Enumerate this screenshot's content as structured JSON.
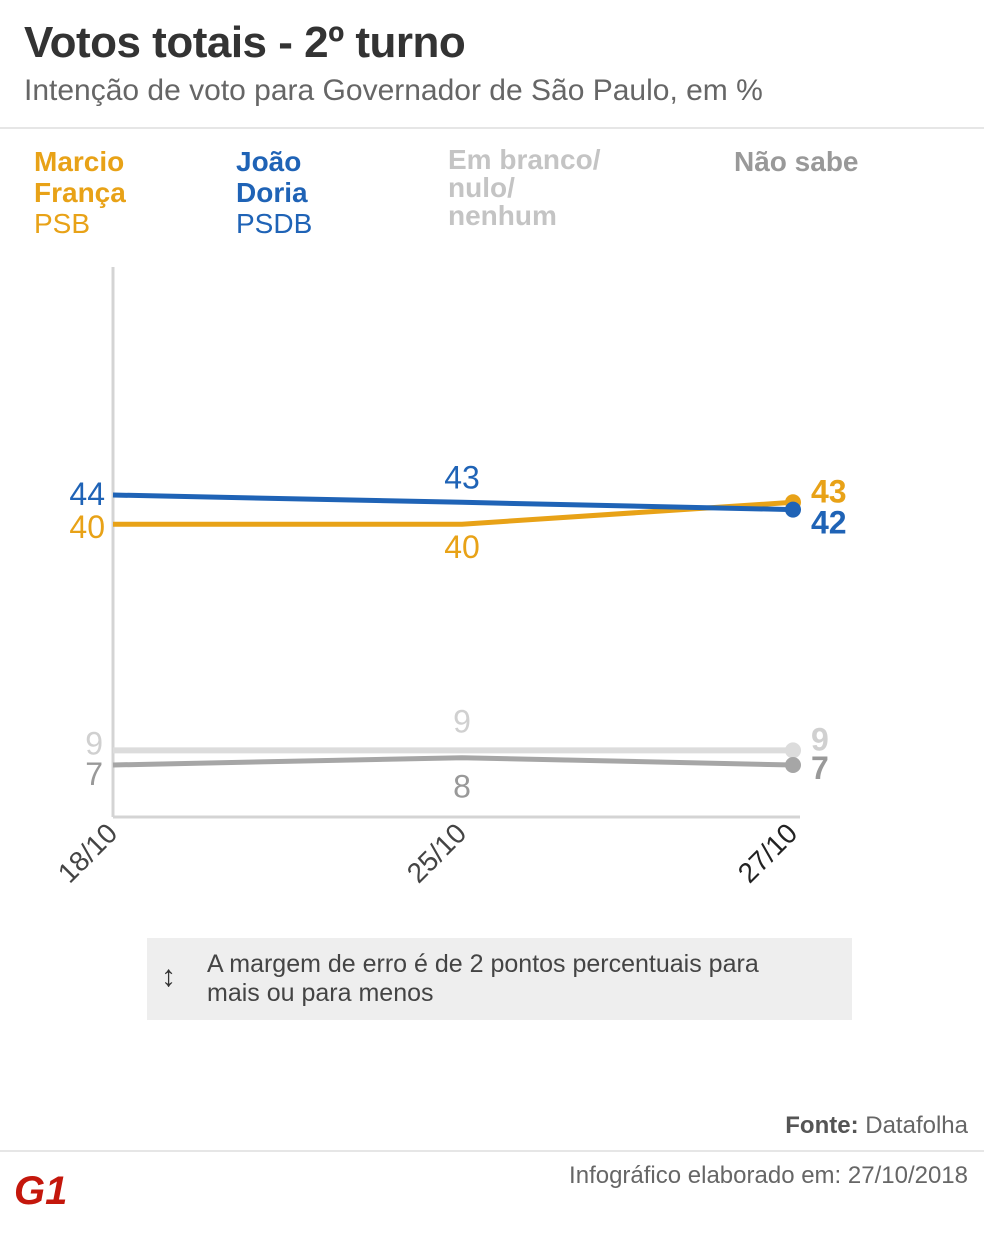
{
  "header": {
    "title": "Votos totais - 2º turno",
    "subtitle": "Intenção de voto para Governador de São Paulo, em %"
  },
  "legend": [
    {
      "name": "Marcio França",
      "party": "PSB",
      "color": "#e8a217"
    },
    {
      "name": "João Doria",
      "party": "PSDB",
      "color": "#1f63b6"
    },
    {
      "name": "Em branco/ nulo/ nenhum",
      "party": "",
      "color": "#c8c8c8"
    },
    {
      "name": "Não sabe",
      "party": "",
      "color": "#9a9a9a"
    }
  ],
  "chart_data": {
    "type": "line",
    "x": [
      "18/10",
      "25/10",
      "27/10"
    ],
    "series": [
      {
        "name": "Marcio França",
        "values": [
          40,
          40,
          43
        ],
        "color": "#e8a217"
      },
      {
        "name": "João Doria",
        "values": [
          44,
          43,
          42
        ],
        "color": "#1f63b6"
      },
      {
        "name": "Em branco/ nulo/ nenhum",
        "values": [
          9,
          9,
          9
        ],
        "color": "#dcdcdc"
      },
      {
        "name": "Não sabe",
        "values": [
          7,
          8,
          7
        ],
        "color": "#a6a6a6"
      }
    ],
    "grid": false
  },
  "note": {
    "icon": "vertical-double-arrow-icon",
    "text": "A margem de erro é de 2 pontos percentuais para mais ou para menos"
  },
  "footer": {
    "source_label": "Fonte:",
    "source_value": "Datafolha",
    "credit": "Infográfico elaborado em: 27/10/2018",
    "logo_text": "G1",
    "logo_color": "#c4170c"
  }
}
